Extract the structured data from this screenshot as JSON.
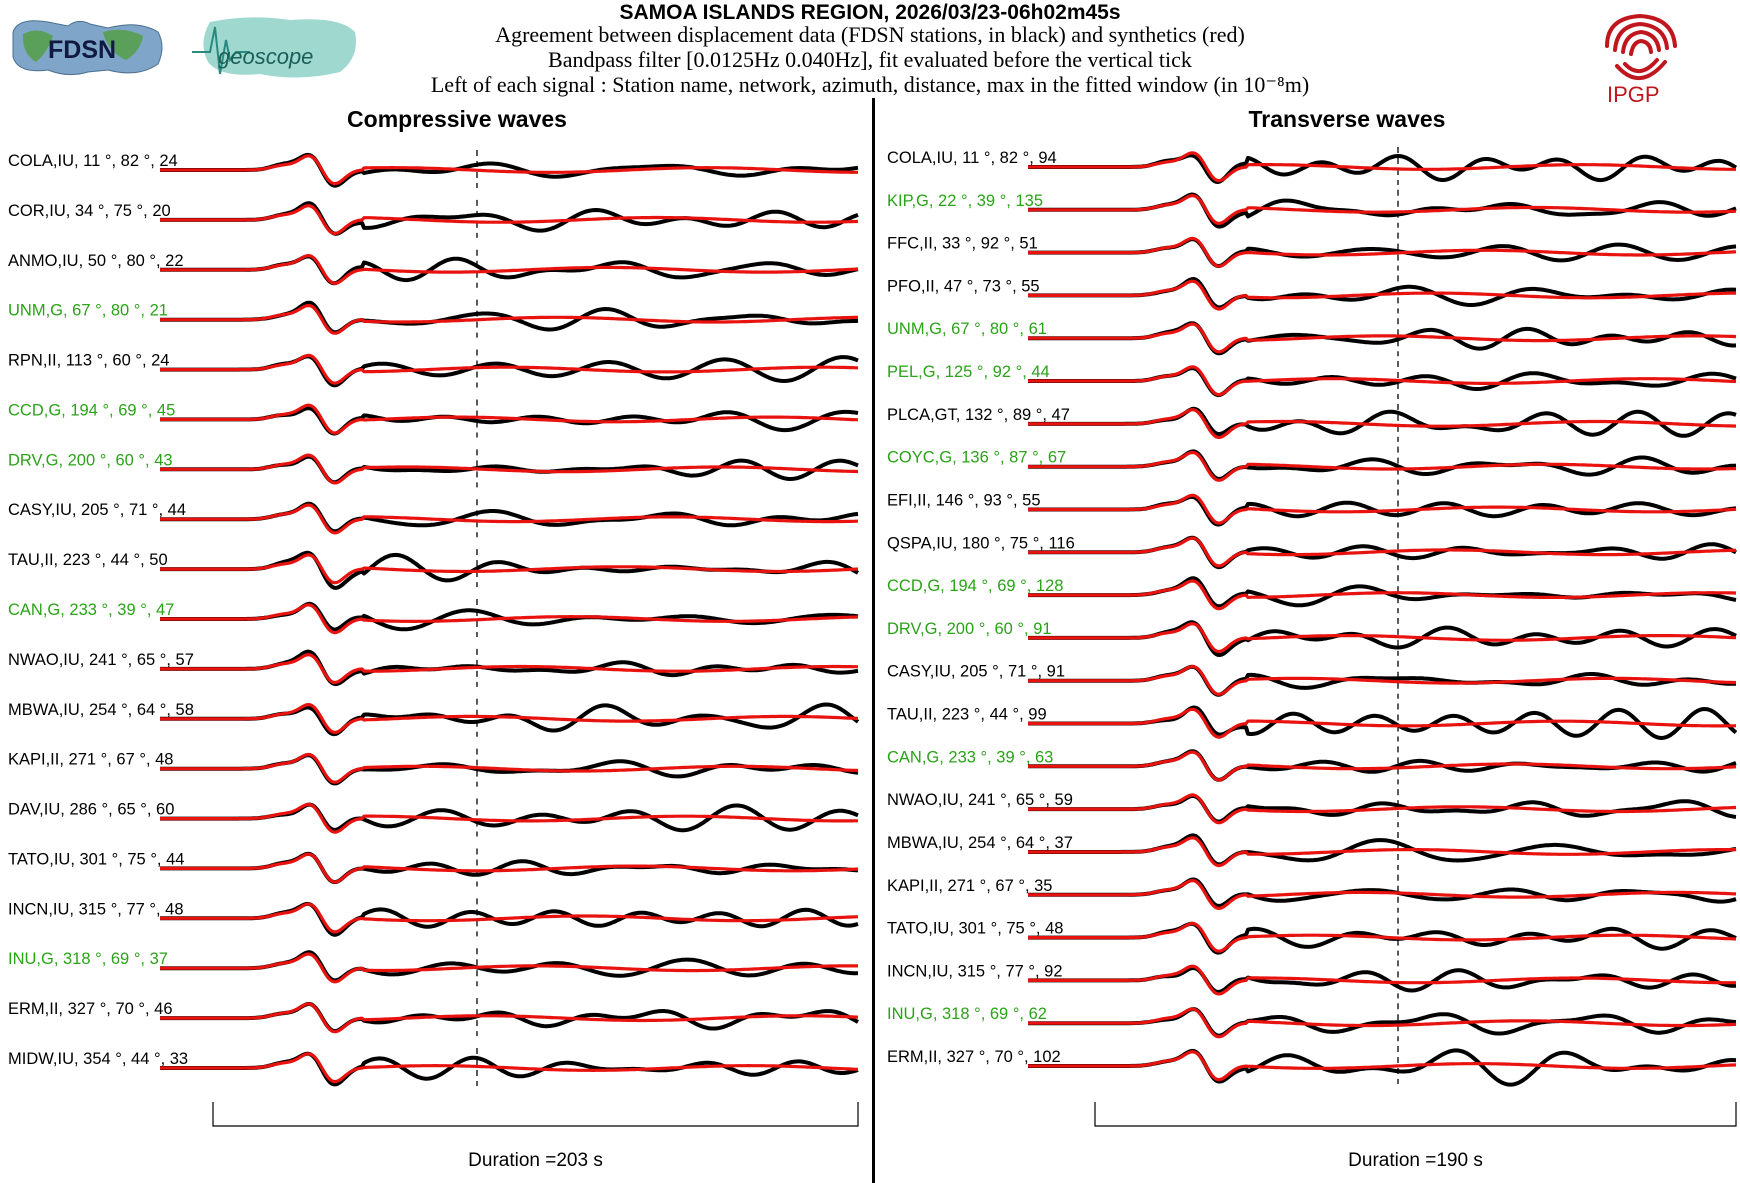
{
  "header": {
    "title": "SAMOA ISLANDS REGION, 2026/03/23-06h02m45s",
    "line1": "Agreement between displacement data (FDSN stations, in black) and synthetics (red)",
    "line2": "Bandpass filter [0.0125Hz 0.040Hz], fit evaluated before the vertical tick",
    "line3": "Left of each signal : Station name, network, azimuth, distance, max in the fitted window (in 10⁻⁸m)"
  },
  "logos": {
    "fdsn": "FDSN",
    "geoscope": "geoscope",
    "ipgp": "IPGP"
  },
  "colors": {
    "data": "#000000",
    "synthetic": "#e8120f",
    "green_label": "#2aa318",
    "black_label": "#000000",
    "ipgp": "#c0171f"
  },
  "chart_data": [
    {
      "type": "line",
      "title": "Compressive waves",
      "duration_label": "Duration =203 s",
      "duration_s": 203,
      "series_legend": [
        "data (black)",
        "synthetics (red)"
      ],
      "stations": [
        {
          "name": "COLA",
          "net": "IU",
          "az": "11",
          "dist": "82",
          "max": "24",
          "color": "black",
          "label": "COLA,IU, 11 °, 82 °, 24"
        },
        {
          "name": "COR",
          "net": "IU",
          "az": "34",
          "dist": "75",
          "max": "20",
          "color": "black",
          "label": "COR,IU, 34 °, 75 °, 20"
        },
        {
          "name": "ANMO",
          "net": "IU",
          "az": "50",
          "dist": "80",
          "max": "22",
          "color": "black",
          "label": "ANMO,IU, 50  °, 80 °, 22"
        },
        {
          "name": "UNM",
          "net": "G",
          "az": "67",
          "dist": "80",
          "max": "21",
          "color": "green",
          "label": "UNM,G, 67  °, 80 °, 21"
        },
        {
          "name": "RPN",
          "net": "II",
          "az": "113",
          "dist": "60",
          "max": "24",
          "color": "black",
          "label": "RPN,II, 113 °, 60 °, 24"
        },
        {
          "name": "CCD",
          "net": "G",
          "az": "194",
          "dist": "69",
          "max": "45",
          "color": "green",
          "label": "CCD,G, 194  °, 69 °, 45"
        },
        {
          "name": "DRV",
          "net": "G",
          "az": "200",
          "dist": "60",
          "max": "43",
          "color": "green",
          "label": "DRV,G, 200  °, 60 °, 43"
        },
        {
          "name": "CASY",
          "net": "IU",
          "az": "205",
          "dist": "71",
          "max": "44",
          "color": "black",
          "label": "CASY,IU, 205 °, 71 °, 44"
        },
        {
          "name": "TAU",
          "net": "II",
          "az": "223",
          "dist": "44",
          "max": "50",
          "color": "black",
          "label": "TAU,II, 223  °, 44 °, 50"
        },
        {
          "name": "CAN",
          "net": "G",
          "az": "233",
          "dist": "39",
          "max": "47",
          "color": "green",
          "label": "CAN,G, 233  °, 39 °, 47"
        },
        {
          "name": "NWAO",
          "net": "IU",
          "az": "241",
          "dist": "65",
          "max": "57",
          "color": "black",
          "label": "NWAO,IU, 241  °, 65 °, 57"
        },
        {
          "name": "MBWA",
          "net": "IU",
          "az": "254",
          "dist": "64",
          "max": "58",
          "color": "black",
          "label": "MBWA,IU, 254  °, 64 °, 58"
        },
        {
          "name": "KAPI",
          "net": "II",
          "az": "271",
          "dist": "67",
          "max": "48",
          "color": "black",
          "label": "KAPI,II, 271 °, 67 °, 48"
        },
        {
          "name": "DAV",
          "net": "IU",
          "az": "286",
          "dist": "65",
          "max": "60",
          "color": "black",
          "label": "DAV,IU, 286  °, 65 °, 60"
        },
        {
          "name": "TATO",
          "net": "IU",
          "az": "301",
          "dist": "75",
          "max": "44",
          "color": "black",
          "label": "TATO,IU, 301  °, 75 °, 44"
        },
        {
          "name": "INCN",
          "net": "IU",
          "az": "315",
          "dist": "77",
          "max": "48",
          "color": "black",
          "label": "INCN,IU, 315  °, 77 °, 48"
        },
        {
          "name": "INU",
          "net": "G",
          "az": "318",
          "dist": "69",
          "max": "37",
          "color": "green",
          "label": "INU,G, 318  °, 69 °, 37"
        },
        {
          "name": "ERM",
          "net": "II",
          "az": "327",
          "dist": "70",
          "max": "46",
          "color": "black",
          "label": "ERM,II, 327  °, 70 °, 46"
        },
        {
          "name": "MIDW",
          "net": "IU",
          "az": "354",
          "dist": "44",
          "max": "33",
          "color": "black",
          "label": "MIDW,IU, 354   °, 44 °, 33"
        }
      ]
    },
    {
      "type": "line",
      "title": "Transverse waves",
      "duration_label": "Duration =190 s",
      "duration_s": 190,
      "series_legend": [
        "data (black)",
        "synthetics (red)"
      ],
      "stations": [
        {
          "name": "COLA",
          "net": "IU",
          "az": "11",
          "dist": "82",
          "max": "94",
          "color": "black",
          "label": "COLA,IU, 11 °, 82 °, 94"
        },
        {
          "name": "KIP",
          "net": "G",
          "az": "22",
          "dist": "39",
          "max": "135",
          "color": "green",
          "label": "KIP,G, 22 °, 39 °, 135"
        },
        {
          "name": "FFC",
          "net": "II",
          "az": "33",
          "dist": "92",
          "max": "51",
          "color": "black",
          "label": "FFC,II, 33 °, 92 °, 51"
        },
        {
          "name": "PFO",
          "net": "II",
          "az": "47",
          "dist": "73",
          "max": "55",
          "color": "black",
          "label": "PFO,II, 47 °, 73 °, 55"
        },
        {
          "name": "UNM",
          "net": "G",
          "az": "67",
          "dist": "80",
          "max": "61",
          "color": "green",
          "label": "UNM,G, 67 °, 80 °, 61"
        },
        {
          "name": "PEL",
          "net": "G",
          "az": "125",
          "dist": "92",
          "max": "44",
          "color": "green",
          "label": "PEL,G, 125 °, 92 °, 44"
        },
        {
          "name": "PLCA",
          "net": "GT",
          "az": "132",
          "dist": "89",
          "max": "47",
          "color": "black",
          "label": "PLCA,GT, 132 °, 89 °, 47"
        },
        {
          "name": "COYC",
          "net": "G",
          "az": "136",
          "dist": "87",
          "max": "67",
          "color": "green",
          "label": "COYC,G, 136 °, 87 °, 67"
        },
        {
          "name": "EFI",
          "net": "II",
          "az": "146",
          "dist": "93",
          "max": "55",
          "color": "black",
          "label": "EFI,II, 146 °, 93 °, 55"
        },
        {
          "name": "QSPA",
          "net": "IU",
          "az": "180",
          "dist": "75",
          "max": "116",
          "color": "black",
          "label": "QSPA,IU, 180 °, 75 °, 116"
        },
        {
          "name": "CCD",
          "net": "G",
          "az": "194",
          "dist": "69",
          "max": "128",
          "color": "green",
          "label": "CCD,G, 194 °, 69 °, 128"
        },
        {
          "name": "DRV",
          "net": "G",
          "az": "200",
          "dist": "60",
          "max": "91",
          "color": "green",
          "label": "DRV,G, 200  °, 60 °, 91"
        },
        {
          "name": "CASY",
          "net": "IU",
          "az": "205",
          "dist": "71",
          "max": "91",
          "color": "black",
          "label": "CASY,IU, 205 °, 71 °, 91"
        },
        {
          "name": "TAU",
          "net": "II",
          "az": "223",
          "dist": "44",
          "max": "99",
          "color": "black",
          "label": "TAU,II, 223  °, 44 °, 99"
        },
        {
          "name": "CAN",
          "net": "G",
          "az": "233",
          "dist": "39",
          "max": "63",
          "color": "green",
          "label": "CAN,G, 233  °, 39 °, 63"
        },
        {
          "name": "NWAO",
          "net": "IU",
          "az": "241",
          "dist": "65",
          "max": "59",
          "color": "black",
          "label": "NWAO,IU, 241  °, 65 °, 59"
        },
        {
          "name": "MBWA",
          "net": "IU",
          "az": "254",
          "dist": "64",
          "max": "37",
          "color": "black",
          "label": "MBWA,IU, 254  °, 64 °, 37"
        },
        {
          "name": "KAPI",
          "net": "II",
          "az": "271",
          "dist": "67",
          "max": "35",
          "color": "black",
          "label": "KAPI,II, 271  °, 67 °, 35"
        },
        {
          "name": "TATO",
          "net": "IU",
          "az": "301",
          "dist": "75",
          "max": "48",
          "color": "black",
          "label": "TATO,IU, 301  °, 75 °, 48"
        },
        {
          "name": "INCN",
          "net": "IU",
          "az": "315",
          "dist": "77",
          "max": "92",
          "color": "black",
          "label": "INCN,IU, 315  °, 77 °, 92"
        },
        {
          "name": "INU",
          "net": "G",
          "az": "318",
          "dist": "69",
          "max": "62",
          "color": "green",
          "label": "INU,G, 318  °, 69 °, 62"
        },
        {
          "name": "ERM",
          "net": "II",
          "az": "327",
          "dist": "70",
          "max": "102",
          "color": "black",
          "label": "ERM,II, 327  °, 70 °, 102"
        }
      ]
    }
  ]
}
